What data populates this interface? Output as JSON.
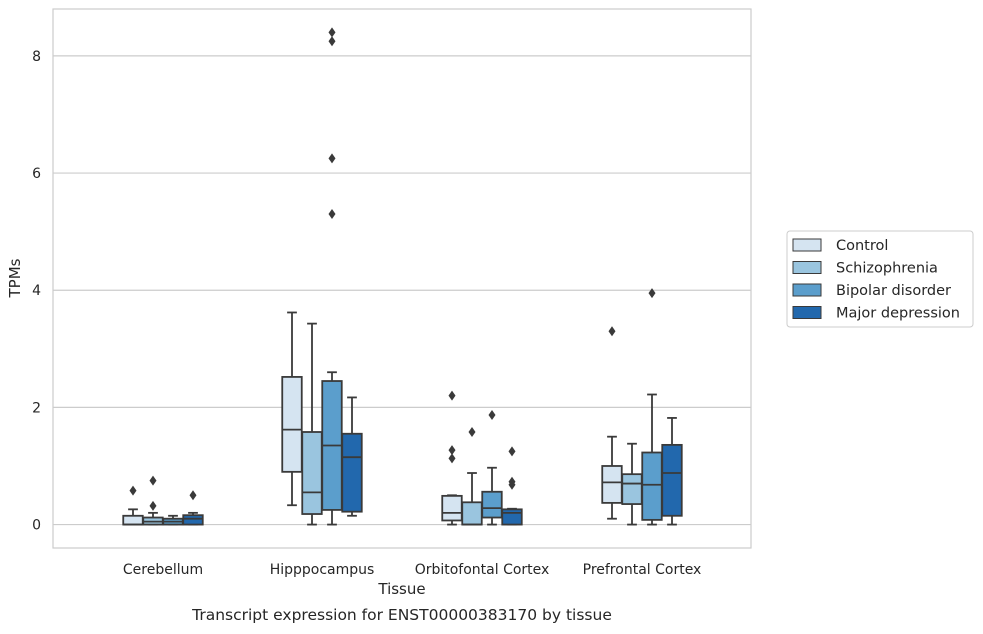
{
  "chart_data": {
    "type": "box",
    "xlabel": "Tissue",
    "ylabel": "TPMs",
    "ylim": [
      -0.4,
      8.8
    ],
    "yticks": [
      0,
      2,
      4,
      6,
      8
    ],
    "grid": true,
    "legend_position": "right",
    "categories": [
      "Cerebellum",
      "Hipppocampus",
      "Orbitofontal Cortex",
      "Prefrontal Cortex"
    ],
    "series": [
      {
        "name": "Control",
        "color": "#d5e4f1",
        "boxes": [
          {
            "min": 0.0,
            "q1": 0.0,
            "median": 0.0,
            "q3": 0.15,
            "max": 0.26,
            "outliers": [
              0.58
            ]
          },
          {
            "min": 0.33,
            "q1": 0.9,
            "median": 1.62,
            "q3": 2.52,
            "max": 3.62,
            "outliers": []
          },
          {
            "min": 0.0,
            "q1": 0.07,
            "median": 0.2,
            "q3": 0.49,
            "max": 0.5,
            "outliers": [
              1.13,
              1.27,
              2.2
            ]
          },
          {
            "min": 0.1,
            "q1": 0.37,
            "median": 0.72,
            "q3": 1.0,
            "max": 1.5,
            "outliers": [
              3.3
            ]
          }
        ]
      },
      {
        "name": "Schizophrenia",
        "color": "#9ac5df",
        "boxes": [
          {
            "min": 0.0,
            "q1": 0.0,
            "median": 0.05,
            "q3": 0.12,
            "max": 0.2,
            "outliers": [
              0.32,
              0.75
            ]
          },
          {
            "min": 0.0,
            "q1": 0.18,
            "median": 0.55,
            "q3": 1.58,
            "max": 3.43,
            "outliers": []
          },
          {
            "min": 0.0,
            "q1": 0.0,
            "median": 0.0,
            "q3": 0.38,
            "max": 0.88,
            "outliers": [
              1.58
            ]
          },
          {
            "min": 0.0,
            "q1": 0.35,
            "median": 0.7,
            "q3": 0.86,
            "max": 1.38,
            "outliers": []
          }
        ]
      },
      {
        "name": "Bipolar disorder",
        "color": "#5b9ecc",
        "boxes": [
          {
            "min": 0.0,
            "q1": 0.0,
            "median": 0.05,
            "q3": 0.1,
            "max": 0.15,
            "outliers": []
          },
          {
            "min": 0.0,
            "q1": 0.25,
            "median": 1.35,
            "q3": 2.45,
            "max": 2.6,
            "outliers": [
              5.3,
              6.25,
              8.25,
              8.4
            ]
          },
          {
            "min": 0.0,
            "q1": 0.12,
            "median": 0.28,
            "q3": 0.56,
            "max": 0.97,
            "outliers": [
              1.87
            ]
          },
          {
            "min": 0.0,
            "q1": 0.08,
            "median": 0.68,
            "q3": 1.23,
            "max": 2.22,
            "outliers": [
              3.95
            ]
          }
        ]
      },
      {
        "name": "Major depression",
        "color": "#2268ad",
        "boxes": [
          {
            "min": 0.0,
            "q1": 0.0,
            "median": 0.1,
            "q3": 0.16,
            "max": 0.2,
            "outliers": [
              0.5
            ]
          },
          {
            "min": 0.15,
            "q1": 0.22,
            "median": 1.15,
            "q3": 1.55,
            "max": 2.17,
            "outliers": []
          },
          {
            "min": 0.0,
            "q1": 0.0,
            "median": 0.2,
            "q3": 0.26,
            "max": 0.27,
            "outliers": [
              0.68,
              0.73,
              1.25
            ]
          },
          {
            "min": 0.0,
            "q1": 0.15,
            "median": 0.88,
            "q3": 1.36,
            "max": 1.82,
            "outliers": []
          }
        ]
      }
    ]
  },
  "caption": "Transcript expression for ENST00000383170 by tissue"
}
